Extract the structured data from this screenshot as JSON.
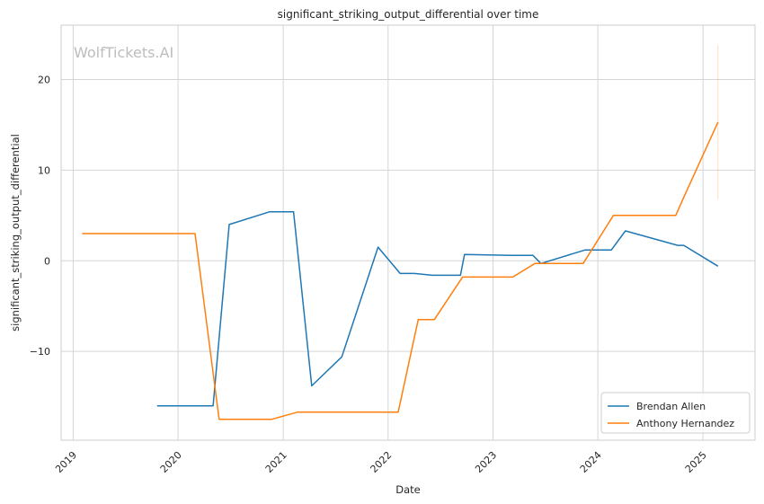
{
  "chart_data": {
    "type": "line",
    "title": "significant_striking_output_differential over time",
    "xlabel": "Date",
    "ylabel": "significant_striking_output_differential",
    "watermark": "WolfTickets.AI",
    "x_ticks": [
      "2019",
      "2020",
      "2021",
      "2022",
      "2023",
      "2024",
      "2025"
    ],
    "y_ticks": [
      -10,
      0,
      10,
      20
    ],
    "xlim": [
      "2018-11-20",
      "2025-07-01"
    ],
    "ylim": [
      -19.8,
      26.0
    ],
    "grid": true,
    "legend_position": "bottom-right",
    "series": [
      {
        "name": "Brendan Allen",
        "color": "#1f77b4",
        "points": [
          [
            "2019-10-20",
            -16.0
          ],
          [
            "2020-05-02",
            -16.0
          ],
          [
            "2020-06-27",
            4.0
          ],
          [
            "2020-11-14",
            5.4
          ],
          [
            "2021-02-06",
            5.4
          ],
          [
            "2021-04-10",
            -13.8
          ],
          [
            "2021-07-24",
            -10.6
          ],
          [
            "2021-11-27",
            1.5
          ],
          [
            "2022-02-12",
            -1.4
          ],
          [
            "2022-04-02",
            -1.4
          ],
          [
            "2022-06-04",
            -1.6
          ],
          [
            "2022-09-10",
            -1.6
          ],
          [
            "2022-09-24",
            0.7
          ],
          [
            "2023-03-04",
            0.6
          ],
          [
            "2023-05-20",
            0.6
          ],
          [
            "2023-06-17",
            -0.3
          ],
          [
            "2023-11-18",
            1.2
          ],
          [
            "2024-02-17",
            1.2
          ],
          [
            "2024-04-06",
            3.3
          ],
          [
            "2024-10-05",
            1.7
          ],
          [
            "2024-10-26",
            1.7
          ],
          [
            "2025-02-22",
            -0.6
          ]
        ]
      },
      {
        "name": "Anthony Hernandez",
        "color": "#ff7f0e",
        "points": [
          [
            "2019-02-01",
            3.0
          ],
          [
            "2020-02-29",
            3.0
          ],
          [
            "2020-05-23",
            -17.5
          ],
          [
            "2020-11-21",
            -17.5
          ],
          [
            "2021-02-20",
            -16.7
          ],
          [
            "2022-02-05",
            -16.7
          ],
          [
            "2022-04-16",
            -6.5
          ],
          [
            "2022-06-11",
            -6.5
          ],
          [
            "2022-09-17",
            -1.8
          ],
          [
            "2023-03-11",
            -1.8
          ],
          [
            "2023-05-27",
            -0.3
          ],
          [
            "2023-11-11",
            -0.3
          ],
          [
            "2024-02-24",
            5.0
          ],
          [
            "2024-09-28",
            5.0
          ],
          [
            "2024-10-26",
            7.0
          ],
          [
            "2025-02-22",
            15.3
          ]
        ],
        "error_band": {
          "x": "2025-02-22",
          "low": 6.8,
          "high": 23.8
        }
      }
    ]
  }
}
